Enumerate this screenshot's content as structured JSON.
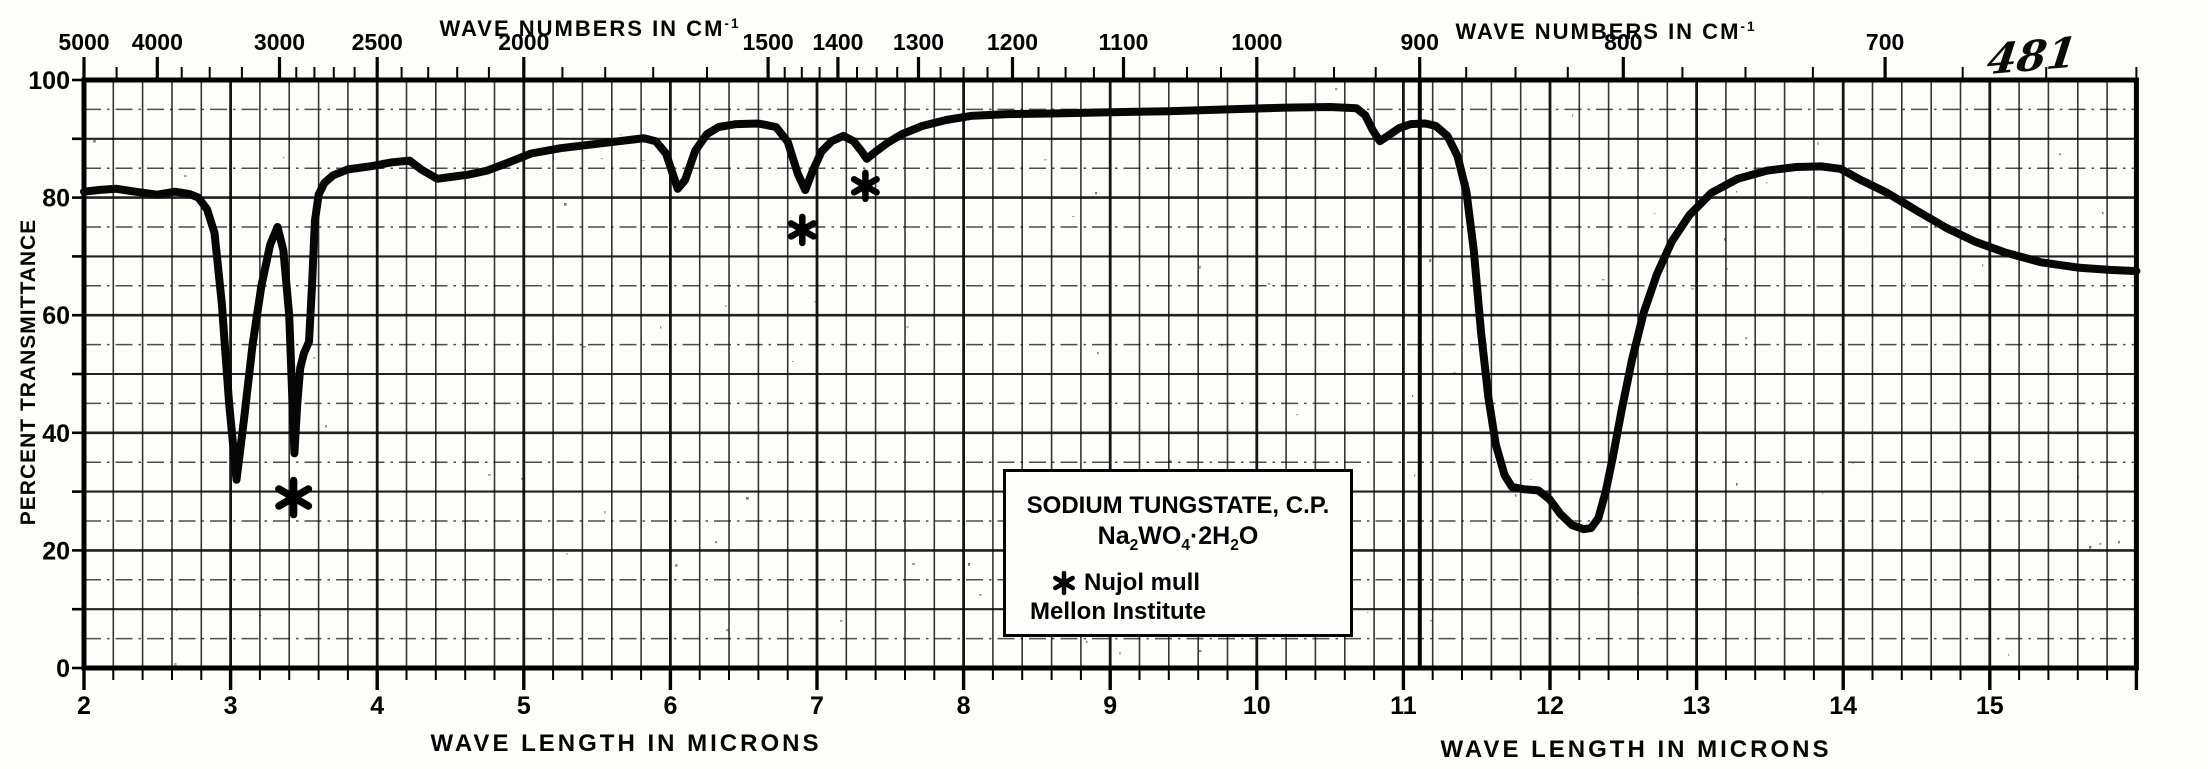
{
  "colors": {
    "ink": "#0a0a0a",
    "paper": "#fdfdfa"
  },
  "annotations": {
    "handwritten_page_number": "481"
  },
  "legend_box": {
    "title": "SODIUM TUNGSTATE, C.P.",
    "formula_parts": [
      {
        "t": "Na"
      },
      {
        "sub": "2"
      },
      {
        "t": "WO"
      },
      {
        "sub": "4"
      },
      {
        "t": "·2H"
      },
      {
        "sub": "2"
      },
      {
        "t": "O"
      }
    ],
    "marker_glyph": "six-spoke-asterisk",
    "marker_note": "Nujol mull",
    "source": "Mellon Institute"
  },
  "chart_data": {
    "type": "line",
    "title": "Infrared spectrum, Sodium Tungstate C.P. (Na2WO4·2H2O), Nujol mull",
    "xlabel": "WAVE LENGTH IN MICRONS",
    "ylabel": "PERCENT TRANSMITTANCE",
    "top_axis_label": "WAVE NUMBERS IN CM",
    "top_axis_label_superscript": "-1",
    "xlim": [
      2,
      16
    ],
    "ylim": [
      0,
      100
    ],
    "grid": "on: vertical every 0.2 micron, horizontal solid every 10% with dash-dot every 5%",
    "legend_position": "inset box lower middle",
    "x_tick_labels": [
      2,
      3,
      4,
      5,
      6,
      7,
      8,
      9,
      10,
      11,
      12,
      13,
      14,
      15
    ],
    "y_tick_labels": [
      100,
      80,
      60,
      40,
      20,
      0
    ],
    "top_tick_labels_wavenumbers": [
      5000,
      4000,
      3000,
      2500,
      2000,
      1500,
      1400,
      1300,
      1200,
      1100,
      1000,
      900,
      800,
      700
    ],
    "series": [
      {
        "name": "IR transmittance spectrum",
        "points_microns_percentT": [
          [
            2.0,
            81
          ],
          [
            2.1,
            81.3
          ],
          [
            2.22,
            81.5
          ],
          [
            2.35,
            81
          ],
          [
            2.5,
            80.5
          ],
          [
            2.62,
            81
          ],
          [
            2.72,
            80.6
          ],
          [
            2.78,
            80
          ],
          [
            2.84,
            78
          ],
          [
            2.89,
            74
          ],
          [
            2.94,
            62
          ],
          [
            2.99,
            45
          ],
          [
            3.04,
            32
          ],
          [
            3.09,
            42
          ],
          [
            3.15,
            55
          ],
          [
            3.21,
            65
          ],
          [
            3.27,
            72
          ],
          [
            3.32,
            75
          ],
          [
            3.36,
            71
          ],
          [
            3.4,
            60
          ],
          [
            3.435,
            36.5
          ],
          [
            3.455,
            45
          ],
          [
            3.475,
            51
          ],
          [
            3.5,
            53.5
          ],
          [
            3.535,
            55.5
          ],
          [
            3.555,
            65
          ],
          [
            3.575,
            76
          ],
          [
            3.6,
            80.5
          ],
          [
            3.64,
            82.5
          ],
          [
            3.7,
            83.8
          ],
          [
            3.8,
            84.8
          ],
          [
            3.95,
            85.3
          ],
          [
            4.1,
            86
          ],
          [
            4.22,
            86.3
          ],
          [
            4.3,
            84.8
          ],
          [
            4.41,
            83.2
          ],
          [
            4.5,
            83.5
          ],
          [
            4.62,
            83.9
          ],
          [
            4.75,
            84.6
          ],
          [
            4.9,
            86
          ],
          [
            5.05,
            87.5
          ],
          [
            5.25,
            88.4
          ],
          [
            5.45,
            89
          ],
          [
            5.65,
            89.6
          ],
          [
            5.82,
            90.1
          ],
          [
            5.9,
            89.6
          ],
          [
            5.97,
            87.5
          ],
          [
            6.05,
            81.5
          ],
          [
            6.1,
            83
          ],
          [
            6.17,
            88
          ],
          [
            6.25,
            90.8
          ],
          [
            6.33,
            92
          ],
          [
            6.45,
            92.5
          ],
          [
            6.6,
            92.6
          ],
          [
            6.72,
            92
          ],
          [
            6.8,
            89.5
          ],
          [
            6.87,
            84
          ],
          [
            6.92,
            81.3
          ],
          [
            6.97,
            84.5
          ],
          [
            7.03,
            87.8
          ],
          [
            7.1,
            89.6
          ],
          [
            7.18,
            90.5
          ],
          [
            7.25,
            89.6
          ],
          [
            7.3,
            88
          ],
          [
            7.34,
            86.6
          ],
          [
            7.4,
            87.8
          ],
          [
            7.48,
            89.3
          ],
          [
            7.58,
            90.8
          ],
          [
            7.72,
            92.2
          ],
          [
            7.88,
            93.2
          ],
          [
            8.05,
            93.9
          ],
          [
            8.3,
            94.2
          ],
          [
            8.6,
            94.3
          ],
          [
            9.0,
            94.5
          ],
          [
            9.4,
            94.7
          ],
          [
            9.8,
            95
          ],
          [
            10.2,
            95.3
          ],
          [
            10.5,
            95.4
          ],
          [
            10.68,
            95.2
          ],
          [
            10.74,
            94
          ],
          [
            10.79,
            91.5
          ],
          [
            10.84,
            89.6
          ],
          [
            10.9,
            90.6
          ],
          [
            10.97,
            91.8
          ],
          [
            11.05,
            92.5
          ],
          [
            11.15,
            92.6
          ],
          [
            11.22,
            92.2
          ],
          [
            11.3,
            90.5
          ],
          [
            11.37,
            87
          ],
          [
            11.43,
            81
          ],
          [
            11.48,
            71
          ],
          [
            11.53,
            57
          ],
          [
            11.58,
            46
          ],
          [
            11.63,
            38
          ],
          [
            11.69,
            32.8
          ],
          [
            11.74,
            30.8
          ],
          [
            11.82,
            30.4
          ],
          [
            11.92,
            30.2
          ],
          [
            12.0,
            28.6
          ],
          [
            12.07,
            26.2
          ],
          [
            12.15,
            24.3
          ],
          [
            12.23,
            23.6
          ],
          [
            12.28,
            23.8
          ],
          [
            12.33,
            25.5
          ],
          [
            12.38,
            30
          ],
          [
            12.43,
            36
          ],
          [
            12.49,
            44
          ],
          [
            12.56,
            52.5
          ],
          [
            12.64,
            60.5
          ],
          [
            12.73,
            67
          ],
          [
            12.83,
            72.5
          ],
          [
            12.95,
            77
          ],
          [
            13.1,
            80.8
          ],
          [
            13.28,
            83.2
          ],
          [
            13.48,
            84.6
          ],
          [
            13.68,
            85.2
          ],
          [
            13.85,
            85.3
          ],
          [
            13.98,
            84.9
          ],
          [
            14.12,
            83
          ],
          [
            14.3,
            80.8
          ],
          [
            14.5,
            77.8
          ],
          [
            14.7,
            74.9
          ],
          [
            14.9,
            72.5
          ],
          [
            15.1,
            70.7
          ],
          [
            15.35,
            69
          ],
          [
            15.6,
            68.1
          ],
          [
            15.82,
            67.7
          ],
          [
            16.0,
            67.5
          ]
        ]
      }
    ],
    "curve_asterisk_markers_microns_percentT": [
      [
        3.43,
        29
      ],
      [
        6.9,
        74.5
      ],
      [
        7.33,
        82
      ]
    ]
  }
}
